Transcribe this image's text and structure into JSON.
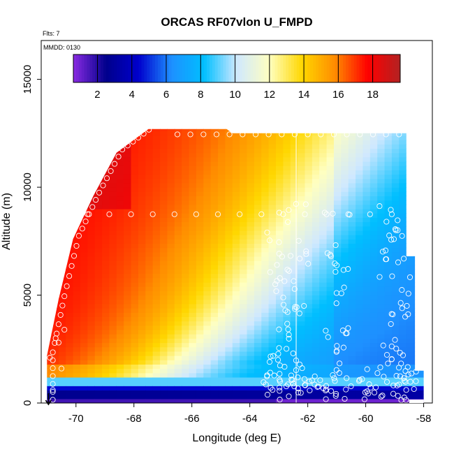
{
  "chart_data": {
    "type": "heatmap",
    "title": "ORCAS RF07vlon U_FMPD",
    "flts_label": "Flts: 7",
    "mmdd_label": "MMDD: 0130",
    "xlabel": "Longitude (deg E)",
    "ylabel": "Altitude (m)",
    "xlim": [
      -71.2,
      -57.7
    ],
    "ylim": [
      0,
      16800
    ],
    "x_ticks": [
      -70,
      -68,
      -66,
      -64,
      -62,
      -60,
      -58
    ],
    "x_tick_labels": [
      "-70",
      "-68",
      "-66",
      "-64",
      "-62",
      "-60",
      "-58"
    ],
    "y_ticks": [
      0,
      5000,
      10000,
      15000
    ],
    "y_tick_labels": [
      "0",
      "5000",
      "10000",
      "15000"
    ],
    "grid": false,
    "colorbar": {
      "placement": "top-inset",
      "range": [
        0.6,
        19.6
      ],
      "ticks": [
        2,
        4,
        6,
        8,
        10,
        12,
        14,
        16,
        18
      ],
      "tick_labels": [
        "2",
        "4",
        "6",
        "8",
        "10",
        "12",
        "14",
        "16",
        "18"
      ],
      "colors": [
        "#8a2be2",
        "#00008b",
        "#0000cd",
        "#1e90ff",
        "#00bfff",
        "#cfe8ff",
        "#ffffc0",
        "#ffd700",
        "#ff8c00",
        "#ff0000",
        "#b22222"
      ]
    },
    "vertical_line_x": -62.4,
    "data_region": {
      "left_edge": [
        [
          -71.0,
          0
        ],
        [
          -71.0,
          2200
        ],
        [
          -70.6,
          4800
        ],
        [
          -70.1,
          7600
        ],
        [
          -69.4,
          9600
        ],
        [
          -68.6,
          11600
        ],
        [
          -67.5,
          12700
        ]
      ],
      "top_edge": [
        [
          -67.5,
          12700
        ],
        [
          -64.8,
          12700
        ],
        [
          -64.6,
          12500
        ],
        [
          -58.6,
          12500
        ]
      ],
      "right_edge": [
        [
          -58.6,
          12500
        ],
        [
          -58.6,
          6800
        ],
        [
          -58.3,
          6800
        ],
        [
          -58.3,
          1500
        ],
        [
          -58.0,
          1500
        ],
        [
          -58.0,
          0
        ]
      ]
    },
    "field_description_points": [
      {
        "lon": -70,
        "alt": 500,
        "value": 3
      },
      {
        "lon": -70,
        "alt": 3000,
        "value": 17
      },
      {
        "lon": -68,
        "alt": 8000,
        "value": 17
      },
      {
        "lon": -66,
        "alt": 6000,
        "value": 15
      },
      {
        "lon": -64,
        "alt": 10000,
        "value": 11
      },
      {
        "lon": -62,
        "alt": 5000,
        "value": 8
      },
      {
        "lon": -60,
        "alt": 3000,
        "value": 6
      },
      {
        "lon": -59,
        "alt": 600,
        "value": 3
      },
      {
        "lon": -62,
        "alt": 150,
        "value": 1
      }
    ]
  }
}
